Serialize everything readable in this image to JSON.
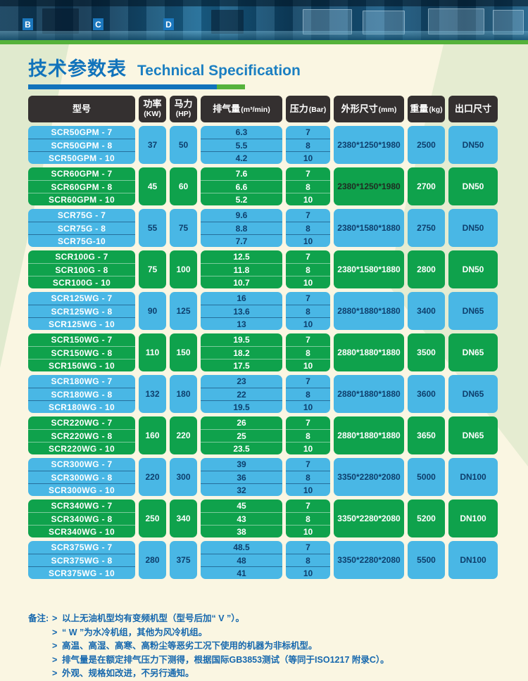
{
  "banner": {
    "signs": [
      "B",
      "C",
      "D"
    ]
  },
  "header": {
    "title_zh": "技术参数表",
    "title_en": "Technical Specification"
  },
  "colors": {
    "accent_blue": "#1173bb",
    "accent_green": "#55b23b",
    "cell_blue": "#49b7e5",
    "cell_green": "#0fa24c",
    "header_dark": "#343030",
    "navy_text": "#0e3f6d",
    "note_blue": "#1668ae",
    "background_cream": "#faf6e2"
  },
  "table": {
    "columns": [
      {
        "label": "型号"
      },
      {
        "label": "功率",
        "unit": "(KW)",
        "stacked": true
      },
      {
        "label": "马力",
        "unit": "(HP)",
        "stacked": true
      },
      {
        "label": "排气量",
        "unit": "(m³/min)",
        "stacked": false
      },
      {
        "label": "压力",
        "unit": "(Bar)",
        "stacked": false
      },
      {
        "label": "外形尺寸",
        "unit": "(mm)",
        "stacked": false
      },
      {
        "label": "重量",
        "unit": "(kg)",
        "stacked": false
      },
      {
        "label": "出口尺寸"
      }
    ],
    "groups": [
      {
        "color": "blue",
        "models": [
          "SCR50GPM - 7",
          "SCR50GPM - 8",
          "SCR50GPM - 10"
        ],
        "power": "37",
        "hp": "50",
        "displacement": [
          "6.3",
          "5.5",
          "4.2"
        ],
        "pressure": [
          "7",
          "8",
          "10"
        ],
        "dimensions": "2380*1250*1980",
        "weight": "2500",
        "outlet": "DN50"
      },
      {
        "color": "green",
        "dims_dark": true,
        "models": [
          "SCR60GPM - 7",
          "SCR60GPM - 8",
          "SCR60GPM - 10"
        ],
        "power": "45",
        "hp": "60",
        "displacement": [
          "7.6",
          "6.6",
          "5.2"
        ],
        "pressure": [
          "7",
          "8",
          "10"
        ],
        "dimensions": "2380*1250*1980",
        "weight": "2700",
        "outlet": "DN50"
      },
      {
        "color": "blue",
        "models": [
          "SCR75G - 7",
          "SCR75G - 8",
          "SCR75G-10"
        ],
        "power": "55",
        "hp": "75",
        "displacement": [
          "9.6",
          "8.8",
          "7.7"
        ],
        "pressure": [
          "7",
          "8",
          "10"
        ],
        "dimensions": "2380*1580*1880",
        "weight": "2750",
        "outlet": "DN50"
      },
      {
        "color": "green",
        "models": [
          "SCR100G - 7",
          "SCR100G - 8",
          "SCR100G - 10"
        ],
        "power": "75",
        "hp": "100",
        "displacement": [
          "12.5",
          "11.8",
          "10.7"
        ],
        "pressure": [
          "7",
          "8",
          "10"
        ],
        "dimensions": "2380*1580*1880",
        "weight": "2800",
        "outlet": "DN50"
      },
      {
        "color": "blue",
        "models": [
          "SCR125WG - 7",
          "SCR125WG - 8",
          "SCR125WG - 10"
        ],
        "power": "90",
        "hp": "125",
        "displacement": [
          "16",
          "13.6",
          "13"
        ],
        "pressure": [
          "7",
          "8",
          "10"
        ],
        "dimensions": "2880*1880*1880",
        "weight": "3400",
        "outlet": "DN65"
      },
      {
        "color": "green",
        "models": [
          "SCR150WG - 7",
          "SCR150WG - 8",
          "SCR150WG - 10"
        ],
        "power": "110",
        "hp": "150",
        "displacement": [
          "19.5",
          "18.2",
          "17.5"
        ],
        "pressure": [
          "7",
          "8",
          "10"
        ],
        "dimensions": "2880*1880*1880",
        "weight": "3500",
        "outlet": "DN65"
      },
      {
        "color": "blue",
        "models": [
          "SCR180WG - 7",
          "SCR180WG - 8",
          "SCR180WG - 10"
        ],
        "power": "132",
        "hp": "180",
        "displacement": [
          "23",
          "22",
          "19.5"
        ],
        "pressure": [
          "7",
          "8",
          "10"
        ],
        "dimensions": "2880*1880*1880",
        "weight": "3600",
        "outlet": "DN65"
      },
      {
        "color": "green",
        "models": [
          "SCR220WG - 7",
          "SCR220WG - 8",
          "SCR220WG - 10"
        ],
        "power": "160",
        "hp": "220",
        "displacement": [
          "26",
          "25",
          "23.5"
        ],
        "pressure": [
          "7",
          "8",
          "10"
        ],
        "dimensions": "2880*1880*1880",
        "weight": "3650",
        "outlet": "DN65"
      },
      {
        "color": "blue",
        "models": [
          "SCR300WG - 7",
          "SCR300WG - 8",
          "SCR300WG - 10"
        ],
        "power": "220",
        "hp": "300",
        "displacement": [
          "39",
          "36",
          "32"
        ],
        "pressure": [
          "7",
          "8",
          "10"
        ],
        "dimensions": "3350*2280*2080",
        "weight": "5000",
        "outlet": "DN100"
      },
      {
        "color": "green",
        "models": [
          "SCR340WG - 7",
          "SCR340WG - 8",
          "SCR340WG - 10"
        ],
        "power": "250",
        "hp": "340",
        "displacement": [
          "45",
          "43",
          "38"
        ],
        "pressure": [
          "7",
          "8",
          "10"
        ],
        "dimensions": "3350*2280*2080",
        "weight": "5200",
        "outlet": "DN100"
      },
      {
        "color": "blue",
        "models": [
          "SCR375WG - 7",
          "SCR375WG - 8",
          "SCR375WG - 10"
        ],
        "power": "280",
        "hp": "375",
        "displacement": [
          "48.5",
          "48",
          "41"
        ],
        "pressure": [
          "7",
          "8",
          "10"
        ],
        "dimensions": "3350*2280*2080",
        "weight": "5500",
        "outlet": "DN100"
      }
    ]
  },
  "notes": {
    "label": "备注:",
    "bullet": ">",
    "items": [
      "以上无油机型均有变频机型（型号后加“ V ”）。",
      "“ W ”为水冷机组，其他为风冷机组。",
      "高温、高湿、高寒、高粉尘等恶劣工况下使用的机器为非标机型。",
      "排气量是在额定排气压力下测得，根据国际GB3853测试（等同于ISO1217 附录C）。",
      "外观、规格如改进，不另行通知。"
    ]
  }
}
